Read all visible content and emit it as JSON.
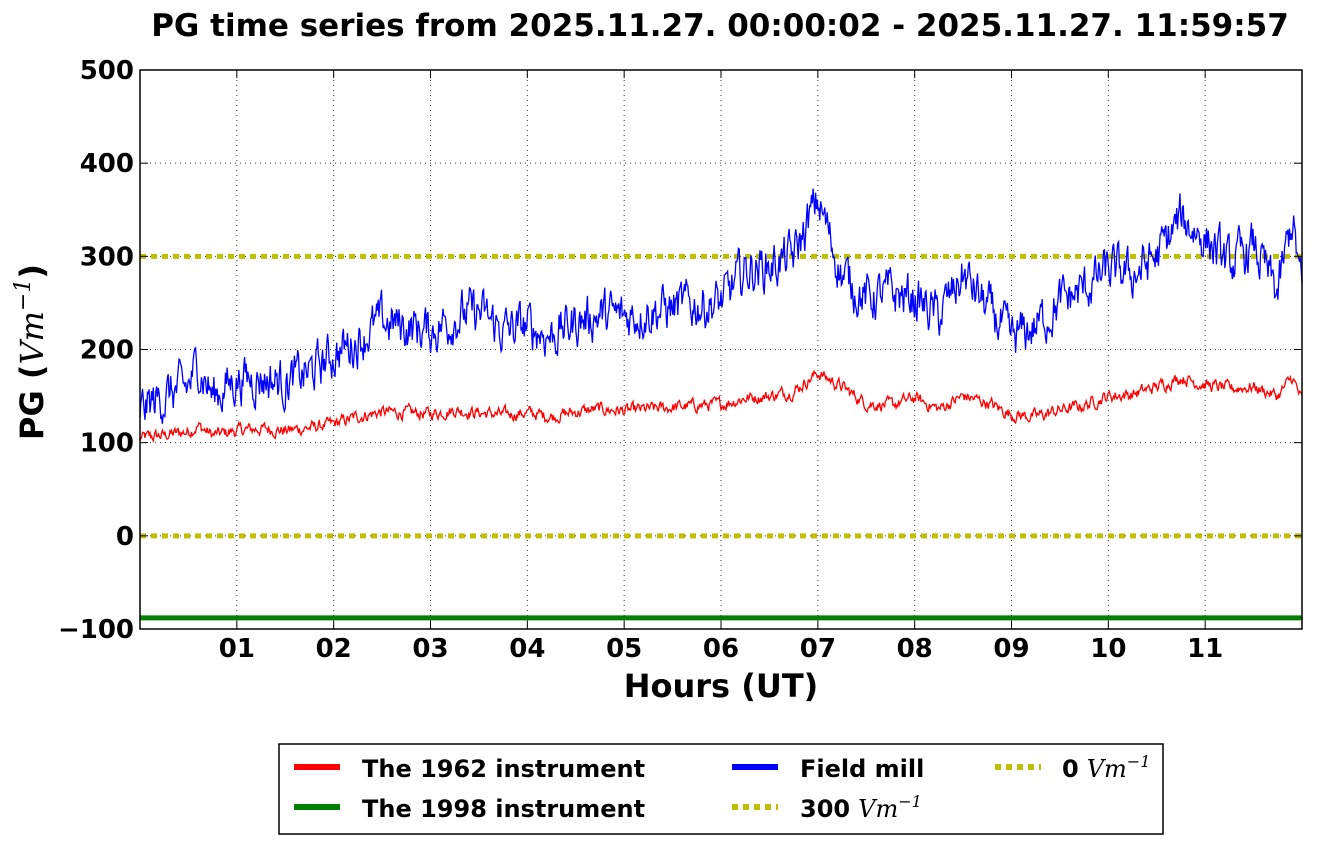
{
  "chart_data": {
    "type": "line",
    "title": "PG time series from 2025.11.27. 00:00:02 - 2025.11.27. 11:59:57",
    "xlabel": "Hours (UT)",
    "ylabel": "PG (Vm⁻¹)",
    "xlim": [
      0,
      12
    ],
    "ylim": [
      -100,
      500
    ],
    "x_ticks": [
      "01",
      "02",
      "03",
      "04",
      "05",
      "06",
      "07",
      "08",
      "09",
      "10",
      "11"
    ],
    "y_ticks": [
      "500",
      "400",
      "300",
      "200",
      "100",
      "0",
      "−100"
    ],
    "grid": true,
    "legend_position": "below",
    "series": [
      {
        "name": "The 1962 instrument",
        "color": "#ff0000",
        "x": [
          0,
          0.25,
          0.5,
          0.6,
          0.75,
          1.0,
          1.25,
          1.5,
          1.75,
          2.0,
          2.25,
          2.5,
          2.75,
          3.0,
          3.25,
          3.5,
          3.75,
          4.0,
          4.25,
          4.5,
          4.75,
          5.0,
          5.25,
          5.5,
          5.75,
          6.0,
          6.25,
          6.5,
          6.75,
          7.0,
          7.25,
          7.5,
          7.75,
          8.0,
          8.25,
          8.5,
          8.75,
          9.0,
          9.25,
          9.5,
          9.75,
          10.0,
          10.25,
          10.5,
          10.75,
          11.0,
          11.25,
          11.5,
          11.75,
          11.9,
          12.0
        ],
        "y": [
          105,
          108,
          112,
          118,
          108,
          113,
          115,
          113,
          116,
          120,
          128,
          133,
          132,
          131,
          135,
          132,
          130,
          132,
          128,
          133,
          136,
          134,
          136,
          138,
          140,
          141,
          148,
          150,
          155,
          175,
          160,
          142,
          140,
          148,
          136,
          150,
          143,
          130,
          128,
          135,
          140,
          150,
          152,
          160,
          170,
          162,
          158,
          160,
          150,
          170,
          145
        ],
        "noise": 6
      },
      {
        "name": "Field mill",
        "color": "#0000ff",
        "x": [
          0,
          0.25,
          0.5,
          0.6,
          0.75,
          1.0,
          1.25,
          1.5,
          1.75,
          2.0,
          2.25,
          2.5,
          2.75,
          3.0,
          3.25,
          3.5,
          3.75,
          4.0,
          4.25,
          4.5,
          4.75,
          5.0,
          5.25,
          5.5,
          5.75,
          6.0,
          6.25,
          6.5,
          6.75,
          7.0,
          7.25,
          7.5,
          7.75,
          8.0,
          8.25,
          8.5,
          8.75,
          9.0,
          9.25,
          9.5,
          9.75,
          10.0,
          10.25,
          10.5,
          10.75,
          11.0,
          11.25,
          11.5,
          11.75,
          11.9,
          12.0
        ],
        "y": [
          135,
          150,
          160,
          185,
          150,
          168,
          170,
          165,
          175,
          195,
          210,
          230,
          225,
          220,
          235,
          240,
          220,
          225,
          215,
          230,
          238,
          235,
          242,
          245,
          248,
          250,
          285,
          290,
          300,
          360,
          280,
          255,
          260,
          255,
          235,
          280,
          245,
          210,
          225,
          250,
          265,
          285,
          280,
          300,
          340,
          320,
          290,
          310,
          260,
          340,
          260
        ],
        "noise": 22
      },
      {
        "name": "The 1998 instrument",
        "color": "#008000",
        "x": [
          0,
          12
        ],
        "y": [
          -88,
          -88
        ],
        "noise": 0
      },
      {
        "name": "300 Vm⁻¹",
        "color": "#bfbf00",
        "x": [
          0,
          12
        ],
        "y": [
          300,
          300
        ],
        "noise": 0
      },
      {
        "name": "0 Vm⁻¹",
        "color": "#bfbf00",
        "x": [
          0,
          12
        ],
        "y": [
          0,
          0
        ],
        "noise": 0
      }
    ]
  },
  "legend": {
    "r1962": "The 1962 instrument",
    "r1998": "The 1998 instrument",
    "field_mill": "Field mill",
    "v300_num": "300",
    "v0_num": "0",
    "unit_base": "Vm",
    "unit_exp": "−1"
  },
  "ylabel_parts": {
    "pre": "PG (",
    "base": "Vm",
    "exp": "−1",
    "post": ")"
  }
}
